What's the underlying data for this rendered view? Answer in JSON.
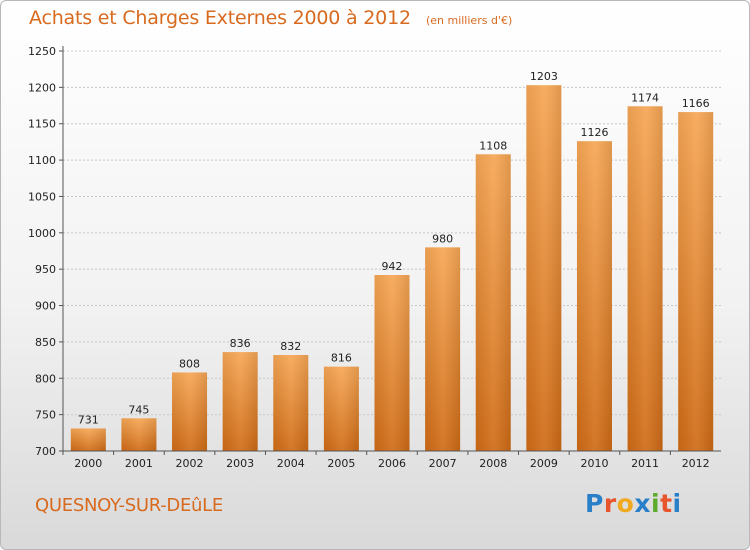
{
  "header": {
    "title": "Achats et Charges Externes 2000 à 2012",
    "subtitle": "(en milliers d'€)"
  },
  "footer": {
    "city": "QUESNOY-SUR-DEûLE",
    "logo": {
      "letters": [
        "P",
        "r",
        "o",
        "x",
        "i",
        "t",
        "i"
      ],
      "colors": [
        "#2a7fc9",
        "#e8542c",
        "#f1a91f",
        "#2a7fc9",
        "#5dab2b",
        "#e8542c",
        "#2a7fc9"
      ]
    }
  },
  "colors": {
    "bar_light": "#f7a755",
    "bar_dark": "#d06b15",
    "text_accent": "#d86a1f",
    "grid": "#c8c8c8"
  },
  "chart_data": {
    "type": "bar",
    "title": "Achats et Charges Externes 2000 à 2012",
    "subtitle": "(en milliers d'€)",
    "categories": [
      "2000",
      "2001",
      "2002",
      "2003",
      "2004",
      "2005",
      "2006",
      "2007",
      "2008",
      "2009",
      "2010",
      "2011",
      "2012"
    ],
    "values": [
      731,
      745,
      808,
      836,
      832,
      816,
      942,
      980,
      1108,
      1203,
      1126,
      1174,
      1166
    ],
    "ylim": [
      700,
      1250
    ],
    "yticks": [
      700,
      750,
      800,
      850,
      900,
      950,
      1000,
      1050,
      1100,
      1150,
      1200,
      1250
    ],
    "grid": true,
    "legend": "none"
  }
}
